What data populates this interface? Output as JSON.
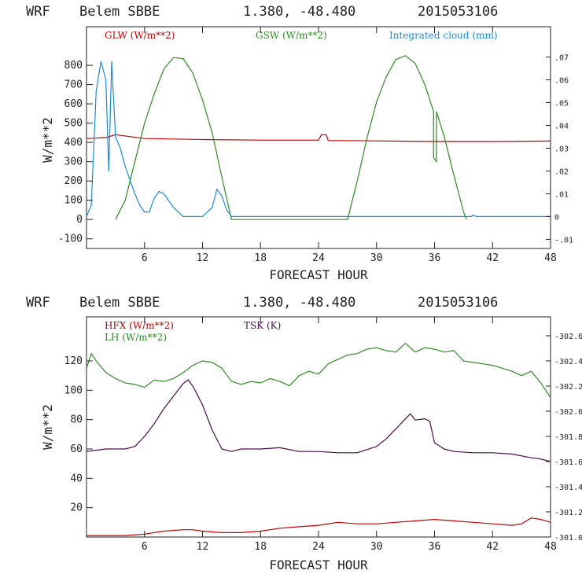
{
  "colors": {
    "red": "#c00000",
    "green": "#2e8b22",
    "blue": "#1a8ad4",
    "purple": "#4b0a4b",
    "axis": "#222222"
  },
  "chart_data": [
    {
      "type": "line",
      "header": {
        "model": "WRF",
        "station": "Belem SBBE",
        "coords": "1.380, -48.480",
        "run": "2015053106"
      },
      "xlabel": "FORECAST HOUR",
      "ylabel": "W/m**2",
      "xlim": [
        0,
        48
      ],
      "ylim": [
        -150,
        1000
      ],
      "y2lim": [
        -0.014,
        0.0833
      ],
      "x_ticks": [
        "6",
        "12",
        "18",
        "24",
        "30",
        "36",
        "42",
        "48"
      ],
      "y_ticks": [
        "-100",
        "0",
        "100",
        "200",
        "300",
        "400",
        "500",
        "600",
        "700",
        "800"
      ],
      "y2_ticks": [
        "-.01",
        "0",
        ".01",
        ".02",
        ".03",
        ".04",
        ".05",
        ".06",
        ".07"
      ],
      "series": [
        {
          "name": "GLW (W/m**2)",
          "color": "#c00000",
          "axis": "left",
          "x": [
            0,
            2,
            3,
            6,
            12,
            18,
            24,
            24.3,
            24.8,
            25,
            30,
            36,
            42,
            48
          ],
          "y": [
            420,
            425,
            440,
            420,
            415,
            412,
            412,
            440,
            440,
            410,
            408,
            405,
            405,
            407
          ]
        },
        {
          "name": "GSW (W/m**2)",
          "color": "#2e8b22",
          "axis": "left",
          "x": [
            3,
            4,
            5,
            6,
            7,
            8,
            9,
            10,
            11,
            12,
            13,
            14,
            15,
            27,
            28,
            29,
            30,
            31,
            32,
            33,
            34,
            35,
            35.9,
            35.9,
            36.2,
            36.2,
            37,
            38,
            39,
            39.3
          ],
          "y": [
            0,
            100,
            300,
            500,
            650,
            780,
            840,
            835,
            760,
            620,
            450,
            220,
            0,
            0,
            200,
            420,
            610,
            740,
            830,
            850,
            810,
            700,
            560,
            320,
            300,
            560,
            430,
            230,
            40,
            0
          ]
        },
        {
          "name": "Integrated cloud (mm)",
          "color": "#1a8ad4",
          "axis": "right",
          "x": [
            0,
            0.5,
            1,
            1.5,
            2,
            2.3,
            2.6,
            3,
            3.5,
            4,
            5,
            5.5,
            6,
            6.5,
            7,
            7.5,
            8,
            8.5,
            9,
            9.5,
            10,
            11,
            12,
            13,
            13.5,
            14,
            14.5,
            15,
            16,
            24,
            36,
            39.8,
            40,
            40.3,
            48
          ],
          "y": [
            0,
            0.005,
            0.055,
            0.068,
            0.06,
            0.02,
            0.068,
            0.035,
            0.03,
            0.022,
            0.01,
            0.005,
            0.002,
            0.002,
            0.008,
            0.011,
            0.01,
            0.007,
            0.004,
            0.002,
            0,
            0,
            0,
            0.004,
            0.012,
            0.009,
            0.003,
            0,
            0,
            0,
            0,
            0,
            0.0007,
            0,
            0
          ]
        }
      ]
    },
    {
      "type": "line",
      "header": {
        "model": "WRF",
        "station": "Belem SBBE",
        "coords": "1.380, -48.480",
        "run": "2015053106"
      },
      "xlabel": "FORECAST HOUR",
      "ylabel": "W/m**2",
      "xlim": [
        0,
        48
      ],
      "ylim": [
        0,
        150
      ],
      "y2lim": [
        301.0,
        302.75
      ],
      "x_ticks": [
        "6",
        "12",
        "18",
        "24",
        "30",
        "36",
        "42",
        "48"
      ],
      "y_ticks": [
        "20",
        "40",
        "60",
        "80",
        "100",
        "120"
      ],
      "y2_ticks": [
        "-301.0",
        "-301.2",
        "-301.4",
        "-301.6",
        "-301.8",
        "-302.0",
        "-302.2",
        "-302.4",
        "-302.6"
      ],
      "series": [
        {
          "name": "HFX (W/m**2)",
          "color": "#c00000",
          "axis": "left",
          "x": [
            0,
            2,
            4,
            6,
            8,
            10,
            11,
            12,
            14,
            16,
            18,
            20,
            22,
            24,
            26,
            28,
            30,
            32,
            34,
            36,
            38,
            40,
            42,
            44,
            45,
            46,
            47,
            48
          ],
          "y": [
            1,
            1,
            1,
            2,
            4,
            5,
            5,
            4,
            3,
            3,
            4,
            6,
            7,
            8,
            10,
            9,
            9,
            10,
            11,
            12,
            11,
            10,
            9,
            8,
            9,
            13,
            12,
            10
          ]
        },
        {
          "name": "LH (W/m**2)",
          "color": "#2e8b22",
          "axis": "left",
          "x": [
            0,
            0.5,
            1,
            2,
            3,
            4,
            5,
            6,
            7,
            8,
            9,
            10,
            11,
            12,
            13,
            14,
            15,
            16,
            17,
            18,
            19,
            20,
            21,
            22,
            23,
            24,
            25,
            26,
            27,
            28,
            29,
            30,
            31,
            32,
            33,
            34,
            35,
            36,
            37,
            38,
            39,
            40,
            41,
            42,
            43,
            44,
            45,
            46,
            47,
            48
          ],
          "y": [
            115,
            125,
            120,
            112,
            108,
            105,
            104,
            102,
            107,
            106,
            108,
            112,
            117,
            120,
            119,
            115,
            106,
            104,
            106,
            105,
            108,
            106,
            103,
            110,
            113,
            111,
            118,
            121,
            124,
            125,
            128,
            129,
            127,
            126,
            132,
            126,
            129,
            128,
            126,
            127,
            120,
            119,
            118,
            117,
            115,
            113,
            110,
            113,
            105,
            95
          ]
        },
        {
          "name": "TSK (K)",
          "color": "#4b0a4b",
          "axis": "right",
          "x": [
            0,
            2,
            4,
            5,
            6,
            7,
            8,
            9,
            10,
            10.5,
            11,
            12,
            13,
            14,
            15,
            16,
            18,
            20,
            22,
            24,
            26,
            28,
            30,
            31,
            32,
            33,
            33.5,
            34,
            35,
            35.5,
            36,
            37,
            38,
            40,
            42,
            44,
            46,
            47,
            48
          ],
          "y": [
            301.68,
            301.7,
            301.7,
            301.72,
            301.8,
            301.9,
            302.02,
            302.12,
            302.22,
            302.25,
            302.2,
            302.05,
            301.85,
            301.7,
            301.68,
            301.7,
            301.7,
            301.71,
            301.68,
            301.68,
            301.67,
            301.67,
            301.72,
            301.78,
            301.86,
            301.94,
            301.98,
            301.93,
            301.94,
            301.92,
            301.75,
            301.7,
            301.68,
            301.67,
            301.67,
            301.66,
            301.63,
            301.62,
            301.6
          ]
        }
      ]
    }
  ]
}
